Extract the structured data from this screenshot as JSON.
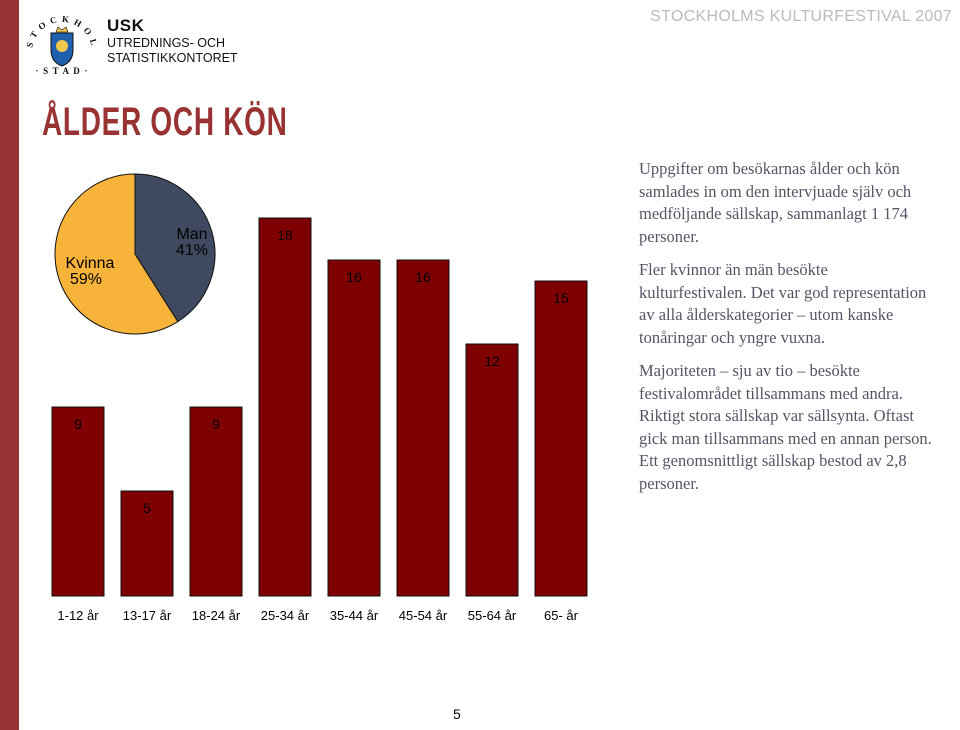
{
  "header": {
    "logo_text": "STOCKHOLMS STAD",
    "org_abbr": "USK",
    "org_line1": "UTREDNINGS- OCH",
    "org_line2": "STATISTIKKONTORET",
    "festival": "STOCKHOLMS KULTURFESTIVAL 2007"
  },
  "page_title": "ÅLDER OCH KÖN",
  "colors": {
    "accent": "#993333",
    "bar": "#7f0000",
    "kvinna": "#f7b33a",
    "man": "#3f4a60"
  },
  "chart_data": [
    {
      "type": "pie",
      "labels": [
        "Kvinna",
        "Man"
      ],
      "values": [
        59,
        41
      ],
      "value_labels": [
        "59%",
        "41%"
      ]
    },
    {
      "type": "bar",
      "categories": [
        "1-12 år",
        "13-17 år",
        "18-24 år",
        "25-34 år",
        "35-44 år",
        "45-54 år",
        "55-64 år",
        "65- år"
      ],
      "values": [
        9,
        5,
        9,
        18,
        16,
        16,
        12,
        15
      ],
      "ylim": [
        0,
        18
      ]
    }
  ],
  "text": {
    "p1": "Uppgifter om besökarnas ålder och kön samlades in om den intervjuade själv och medföljande sällskap, sammanlagt 1 174 personer.",
    "p2": "Fler kvinnor än män besökte kulturfestivalen. Det var god representation av alla ålderskategorier – utom kanske tonåringar och yngre vuxna.",
    "p3": "Majoriteten – sju av tio – besökte festivalområdet tillsammans med andra. Riktigt stora sällskap var sällsynta. Oftast gick man tillsammans med en annan person. Ett genomsnittligt sällskap bestod av 2,8 personer."
  },
  "page_number": "5"
}
